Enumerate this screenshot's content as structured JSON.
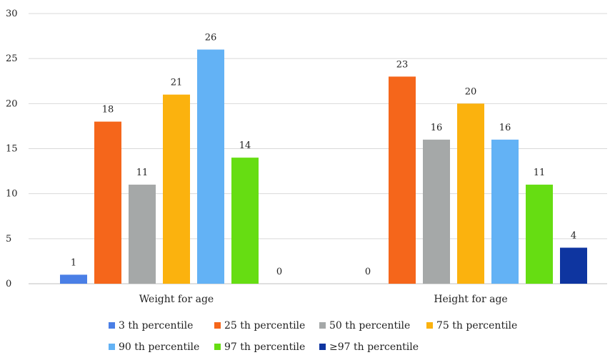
{
  "chart_data": {
    "type": "bar",
    "categories": [
      "Weight for age",
      "Height for age"
    ],
    "series": [
      {
        "name": "3 th percentile",
        "color": "#4a7fe6",
        "values": [
          1,
          0
        ]
      },
      {
        "name": "25 th percentile",
        "color": "#f5661b",
        "values": [
          18,
          23
        ]
      },
      {
        "name": "50 th percentile",
        "color": "#a5a8a8",
        "values": [
          11,
          16
        ]
      },
      {
        "name": "75 th percentile",
        "color": "#fbb20e",
        "values": [
          21,
          20
        ]
      },
      {
        "name": "90 th percentile",
        "color": "#63b2f5",
        "values": [
          26,
          16
        ]
      },
      {
        "name": "97 th percentile",
        "color": "#66dd12",
        "values": [
          14,
          11
        ]
      },
      {
        "name": "≥97 th percentile",
        "color": "#0e35a0",
        "values": [
          0,
          4
        ]
      }
    ],
    "yticks": [
      "0",
      "5",
      "10",
      "15",
      "20",
      "25",
      "30"
    ],
    "ylim": [
      0,
      30
    ],
    "grid": true,
    "legend": "bottom"
  }
}
